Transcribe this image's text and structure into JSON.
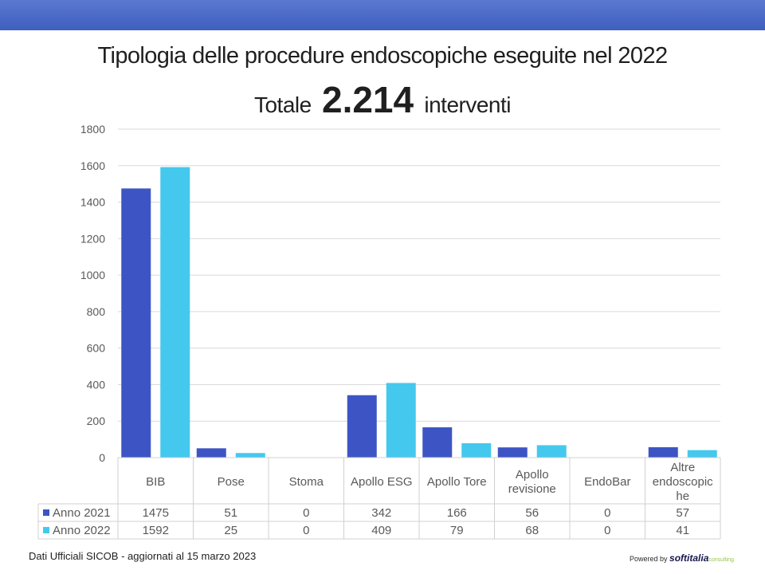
{
  "header": {
    "title": "Tipologia delle procedure endoscopiche eseguite nel 2022",
    "subtitle_prefix": "Totale",
    "subtitle_number": "2.214",
    "subtitle_suffix": "interventi"
  },
  "footer": {
    "note": "Dati Ufficiali SICOB - aggiornati al 15 marzo 2023"
  },
  "brand": {
    "powered": "Powered by",
    "name": "softitalia",
    "suffix": "consulting"
  },
  "chart_data": {
    "type": "bar",
    "title": "Tipologia delle procedure endoscopiche eseguite nel 2022",
    "categories": [
      "BIB",
      "Pose",
      "Stoma",
      "Apollo ESG",
      "Apollo Tore",
      "Apollo revisione",
      "EndoBar",
      "Altre endoscopiche"
    ],
    "category_lines": [
      [
        "BIB"
      ],
      [
        "Pose"
      ],
      [
        "Stoma"
      ],
      [
        "Apollo ESG"
      ],
      [
        "Apollo Tore"
      ],
      [
        "Apollo",
        "revisione"
      ],
      [
        "EndoBar"
      ],
      [
        "Altre",
        "endoscopic",
        "he"
      ]
    ],
    "series": [
      {
        "name": "Anno 2021",
        "color": "#3d55c4",
        "values": [
          1475,
          51,
          0,
          342,
          166,
          56,
          0,
          57
        ]
      },
      {
        "name": "Anno 2022",
        "color": "#45c8ee",
        "values": [
          1592,
          25,
          0,
          409,
          79,
          68,
          0,
          41
        ]
      }
    ],
    "ylim": [
      0,
      1800
    ],
    "yticks": [
      0,
      200,
      400,
      600,
      800,
      1000,
      1200,
      1400,
      1600,
      1800
    ],
    "grid": true,
    "legend": "data-table",
    "xlabel": "",
    "ylabel": ""
  }
}
